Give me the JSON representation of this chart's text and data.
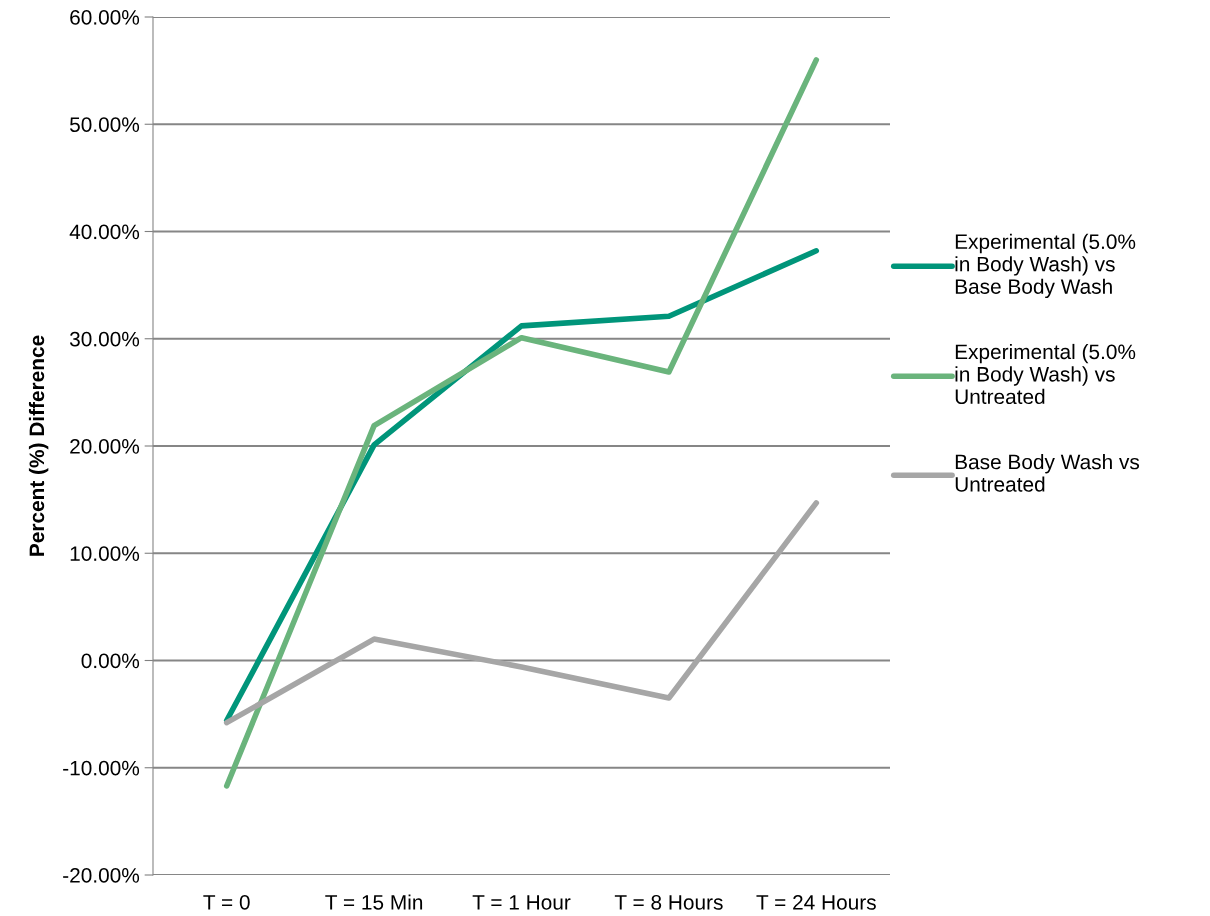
{
  "chart_data": {
    "type": "line",
    "ylabel": "Percent (%) Difference",
    "categories": [
      "T = 0",
      "T = 15 Min",
      "T = 1 Hour",
      "T = 8 Hours",
      "T = 24 Hours"
    ],
    "series": [
      {
        "name": "Experimental (5.0% in Body Wash) vs Base Body Wash",
        "color": "#00957a",
        "values": [
          -5.6,
          20.1,
          31.2,
          32.1,
          38.2
        ]
      },
      {
        "name": "Experimental (5.0% in Body Wash) vs Untreated",
        "color": "#6ab47c",
        "values": [
          -11.7,
          21.9,
          30.1,
          26.9,
          56.0
        ]
      },
      {
        "name": "Base Body Wash vs Untreated",
        "color": "#a6a6a6",
        "values": [
          -5.8,
          2.0,
          -0.6,
          -3.5,
          14.7
        ]
      }
    ],
    "ylim": [
      -20,
      60
    ],
    "yticks": [
      {
        "value": -20,
        "label": "-20.00%"
      },
      {
        "value": -10,
        "label": "-10.00%"
      },
      {
        "value": 0,
        "label": "0.00%"
      },
      {
        "value": 10,
        "label": "10.00%"
      },
      {
        "value": 20,
        "label": "20.00%"
      },
      {
        "value": 30,
        "label": "30.00%"
      },
      {
        "value": 40,
        "label": "40.00%"
      },
      {
        "value": 50,
        "label": "50.00%"
      },
      {
        "value": 60,
        "label": "60.00%"
      }
    ],
    "grid": "y",
    "legend": "right",
    "marker": "none",
    "line_style": "solid"
  }
}
